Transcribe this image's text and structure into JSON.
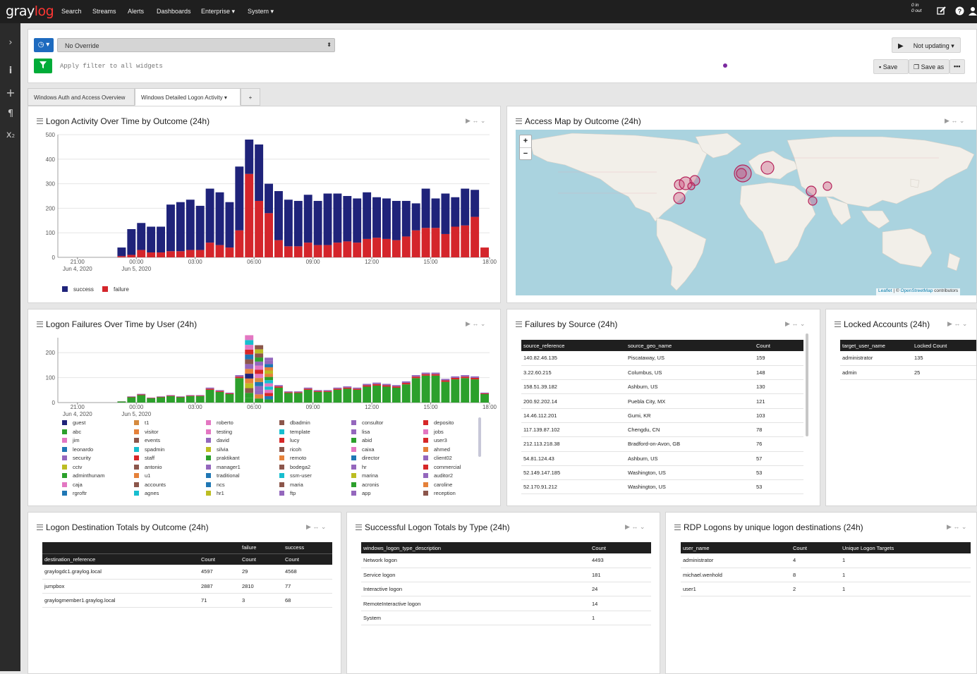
{
  "nav": {
    "logo_a": "gray",
    "logo_b": "log",
    "items": [
      "Search",
      "Streams",
      "Alerts",
      "Dashboards",
      "Enterprise",
      "System"
    ],
    "throughput_in": "0 in",
    "throughput_out": "0 out"
  },
  "sidebar": {
    "icons": [
      "chevron-right-icon",
      "info-icon",
      "plus-icon",
      "paragraph-icon",
      "subscript-icon"
    ]
  },
  "query": {
    "timerange_value": "No Override",
    "filter_placeholder": "Apply filter to all widgets",
    "refresh_label": "Not updating",
    "save_label": "Save",
    "save_as_label": "Save as"
  },
  "tabs": [
    {
      "label": "Windows Auth and Access Overview"
    },
    {
      "label": "Windows Detailed Logon Activity"
    },
    {
      "label": "+"
    }
  ],
  "widgets": {
    "logon_activity": {
      "title": "Logon Activity Over Time by Outcome (24h)",
      "chart_data": {
        "type": "bar",
        "stacked": true,
        "categories": [
          "20:00",
          "20:30",
          "21:00",
          "21:30",
          "22:00",
          "22:30",
          "23:00",
          "23:30",
          "00:00",
          "00:30",
          "01:00",
          "01:30",
          "02:00",
          "02:30",
          "03:00",
          "03:30",
          "04:00",
          "04:30",
          "05:00",
          "05:30",
          "06:00",
          "06:30",
          "07:00",
          "07:30",
          "08:00",
          "08:30",
          "09:00",
          "09:30",
          "10:00",
          "10:30",
          "11:00",
          "11:30",
          "12:00",
          "12:30",
          "13:00",
          "13:30",
          "14:00",
          "14:30",
          "15:00",
          "15:30",
          "16:00",
          "16:30",
          "17:00",
          "17:30"
        ],
        "x_tick_labels": [
          "21:00",
          "00:00",
          "03:00",
          "06:00",
          "09:00",
          "12:00",
          "15:00",
          "18:00"
        ],
        "x_tick_sublabels": [
          "Jun 4, 2020",
          "Jun 5, 2020"
        ],
        "y_ticks": [
          0,
          100,
          200,
          300,
          400,
          500
        ],
        "ylim": [
          0,
          500
        ],
        "series": [
          {
            "name": "success",
            "color": "#1f237a",
            "values": [
              0,
              0,
              0,
              0,
              0,
              0,
              35,
              105,
              110,
              105,
              105,
              190,
              200,
              205,
              180,
              220,
              215,
              185,
              260,
              140,
              230,
              120,
              200,
              190,
              185,
              195,
              180,
              210,
              200,
              185,
              180,
              190,
              165,
              165,
              160,
              145,
              110,
              160,
              120,
              165,
              120,
              150,
              110,
              0
            ]
          },
          {
            "name": "failure",
            "color": "#d4252b",
            "values": [
              0,
              0,
              0,
              0,
              0,
              0,
              5,
              10,
              30,
              20,
              20,
              25,
              25,
              30,
              30,
              60,
              50,
              40,
              110,
              340,
              230,
              180,
              70,
              45,
              45,
              60,
              50,
              50,
              60,
              65,
              60,
              75,
              80,
              75,
              70,
              85,
              110,
              120,
              120,
              95,
              125,
              130,
              165,
              40
            ]
          }
        ]
      }
    },
    "access_map": {
      "title": "Access Map by Outcome (24h)",
      "zoom_in": "+",
      "zoom_out": "−",
      "attribution_leaflet": "Leaflet",
      "attribution_sep": " | © ",
      "attribution_osm": "OpenStreetMap",
      "attribution_tail": " contributors"
    },
    "failures_by_user": {
      "title": "Logon Failures Over Time by User (24h)",
      "chart_data": {
        "type": "bar",
        "stacked": true,
        "categories": [
          "20:00",
          "20:30",
          "21:00",
          "21:30",
          "22:00",
          "22:30",
          "23:00",
          "23:30",
          "00:00",
          "00:30",
          "01:00",
          "01:30",
          "02:00",
          "02:30",
          "03:00",
          "03:30",
          "04:00",
          "04:30",
          "05:00",
          "05:30",
          "06:00",
          "06:30",
          "07:00",
          "07:30",
          "08:00",
          "08:30",
          "09:00",
          "09:30",
          "10:00",
          "10:30",
          "11:00",
          "11:30",
          "12:00",
          "12:30",
          "13:00",
          "13:30",
          "14:00",
          "14:30",
          "15:00",
          "15:30",
          "16:00",
          "16:30",
          "17:00",
          "17:30"
        ],
        "x_tick_labels": [
          "21:00",
          "00:00",
          "03:00",
          "06:00",
          "09:00",
          "12:00",
          "15:00",
          "18:00"
        ],
        "x_tick_sublabels": [
          "Jun 4, 2020",
          "Jun 5, 2020"
        ],
        "y_ticks": [
          0,
          100,
          200
        ],
        "ylim": [
          0,
          260
        ],
        "totals": [
          0,
          0,
          0,
          0,
          0,
          0,
          5,
          25,
          35,
          20,
          25,
          30,
          25,
          30,
          30,
          60,
          50,
          40,
          110,
          270,
          230,
          180,
          70,
          45,
          45,
          60,
          50,
          50,
          60,
          65,
          60,
          75,
          80,
          75,
          70,
          85,
          110,
          120,
          120,
          95,
          105,
          110,
          105,
          40
        ],
        "legend": [
          [
            "guest",
            "#1f237a"
          ],
          [
            "t1",
            "#d58a3e"
          ],
          [
            "roberto",
            "#e377c2"
          ],
          [
            "dbadmin",
            "#8c564b"
          ],
          [
            "consultor",
            "#9467bd"
          ],
          [
            "deposito",
            "#d62728"
          ],
          [
            "abc",
            "#2ca02c"
          ],
          [
            "visitor",
            "#e5813a"
          ],
          [
            "testing",
            "#e377c2"
          ],
          [
            "template",
            "#17becf"
          ],
          [
            "lisa",
            "#9467bd"
          ],
          [
            "jobs",
            "#e377c2"
          ],
          [
            "jim",
            "#e377c2"
          ],
          [
            "events",
            "#8c564b"
          ],
          [
            "david",
            "#9467bd"
          ],
          [
            "lucy",
            "#d62728"
          ],
          [
            "abid",
            "#2ca02c"
          ],
          [
            "user3",
            "#d62728"
          ],
          [
            "leonardo",
            "#1f77b4"
          ],
          [
            "spadmin",
            "#17becf"
          ],
          [
            "silvia",
            "#bcbd22"
          ],
          [
            "ricoh",
            "#8c564b"
          ],
          [
            "caixa",
            "#e377c2"
          ],
          [
            "ahmed",
            "#e5813a"
          ],
          [
            "security",
            "#9467bd"
          ],
          [
            "staff",
            "#d62728"
          ],
          [
            "praktikant",
            "#2ca02c"
          ],
          [
            "remoto",
            "#e5813a"
          ],
          [
            "director",
            "#1f77b4"
          ],
          [
            "client02",
            "#9467bd"
          ],
          [
            "cctv",
            "#bcbd22"
          ],
          [
            "antonio",
            "#8c564b"
          ],
          [
            "manager1",
            "#9467bd"
          ],
          [
            "bodega2",
            "#8c564b"
          ],
          [
            "hr",
            "#9467bd"
          ],
          [
            "commercial",
            "#d62728"
          ],
          [
            "adminthunam",
            "#2ca02c"
          ],
          [
            "u1",
            "#e5813a"
          ],
          [
            "traditional",
            "#1f77b4"
          ],
          [
            "ssm-user",
            "#17becf"
          ],
          [
            "marina",
            "#bcbd22"
          ],
          [
            "auditor2",
            "#9467bd"
          ],
          [
            "caja",
            "#e377c2"
          ],
          [
            "accounts",
            "#8c564b"
          ],
          [
            "ncs",
            "#1f77b4"
          ],
          [
            "maria",
            "#8c564b"
          ],
          [
            "acronis",
            "#2ca02c"
          ],
          [
            "caroline",
            "#e5813a"
          ],
          [
            "rgroftr",
            "#1f77b4"
          ],
          [
            "agnes",
            "#17becf"
          ],
          [
            "hr1",
            "#bcbd22"
          ],
          [
            "ftp",
            "#9467bd"
          ],
          [
            "app",
            "#9467bd"
          ],
          [
            "reception",
            "#8c564b"
          ]
        ]
      }
    },
    "failures_by_source": {
      "title": "Failures by Source (24h)",
      "columns": [
        "source_reference",
        "source_geo_name",
        "Count"
      ],
      "rows": [
        [
          "140.82.46.135",
          "Piscataway, US",
          "159"
        ],
        [
          "3.22.60.215",
          "Columbus, US",
          "148"
        ],
        [
          "158.51.39.182",
          "Ashburn, US",
          "130"
        ],
        [
          "200.92.202.14",
          "Puebla City, MX",
          "121"
        ],
        [
          "14.46.112.201",
          "Gumi, KR",
          "103"
        ],
        [
          "117.139.87.102",
          "Chengdu, CN",
          "78"
        ],
        [
          "212.113.218.38",
          "Bradford-on-Avon, GB",
          "76"
        ],
        [
          "54.81.124.43",
          "Ashburn, US",
          "57"
        ],
        [
          "52.149.147.185",
          "Washington, US",
          "53"
        ],
        [
          "52.170.91.212",
          "Washington, US",
          "53"
        ]
      ]
    },
    "locked_accounts": {
      "title": "Locked Accounts (24h)",
      "columns": [
        "target_user_name",
        "Locked Count"
      ],
      "rows": [
        [
          "administrator",
          "135"
        ],
        [
          "admin",
          "25"
        ]
      ]
    },
    "dest_totals": {
      "title": "Logon Destination Totals by Outcome (24h)",
      "group_headers": [
        "failure",
        "success"
      ],
      "columns": [
        "destination_reference",
        "Count",
        "Count",
        "Count"
      ],
      "rows": [
        [
          "graylogdc1.graylog.local",
          "4597",
          "29",
          "4568"
        ],
        [
          "jumpbox",
          "2887",
          "2810",
          "77"
        ],
        [
          "graylogmember1.graylog.local",
          "71",
          "3",
          "68"
        ]
      ]
    },
    "success_by_type": {
      "title": "Successful Logon Totals by Type (24h)",
      "columns": [
        "windows_logon_type_description",
        "Count"
      ],
      "rows": [
        [
          "Network logon",
          "4493"
        ],
        [
          "Service logon",
          "181"
        ],
        [
          "Interactive logon",
          "24"
        ],
        [
          "RemoteInteractive logon",
          "14"
        ],
        [
          "System",
          "1"
        ]
      ]
    },
    "rdp_logons": {
      "title": "RDP Logons by unique logon destinations (24h)",
      "columns": [
        "user_name",
        "Count",
        "Unique Logon Targets"
      ],
      "rows": [
        [
          "administrator",
          "4",
          "1"
        ],
        [
          "michael.wenhold",
          "8",
          "1"
        ],
        [
          "user1",
          "2",
          "1"
        ]
      ]
    }
  }
}
